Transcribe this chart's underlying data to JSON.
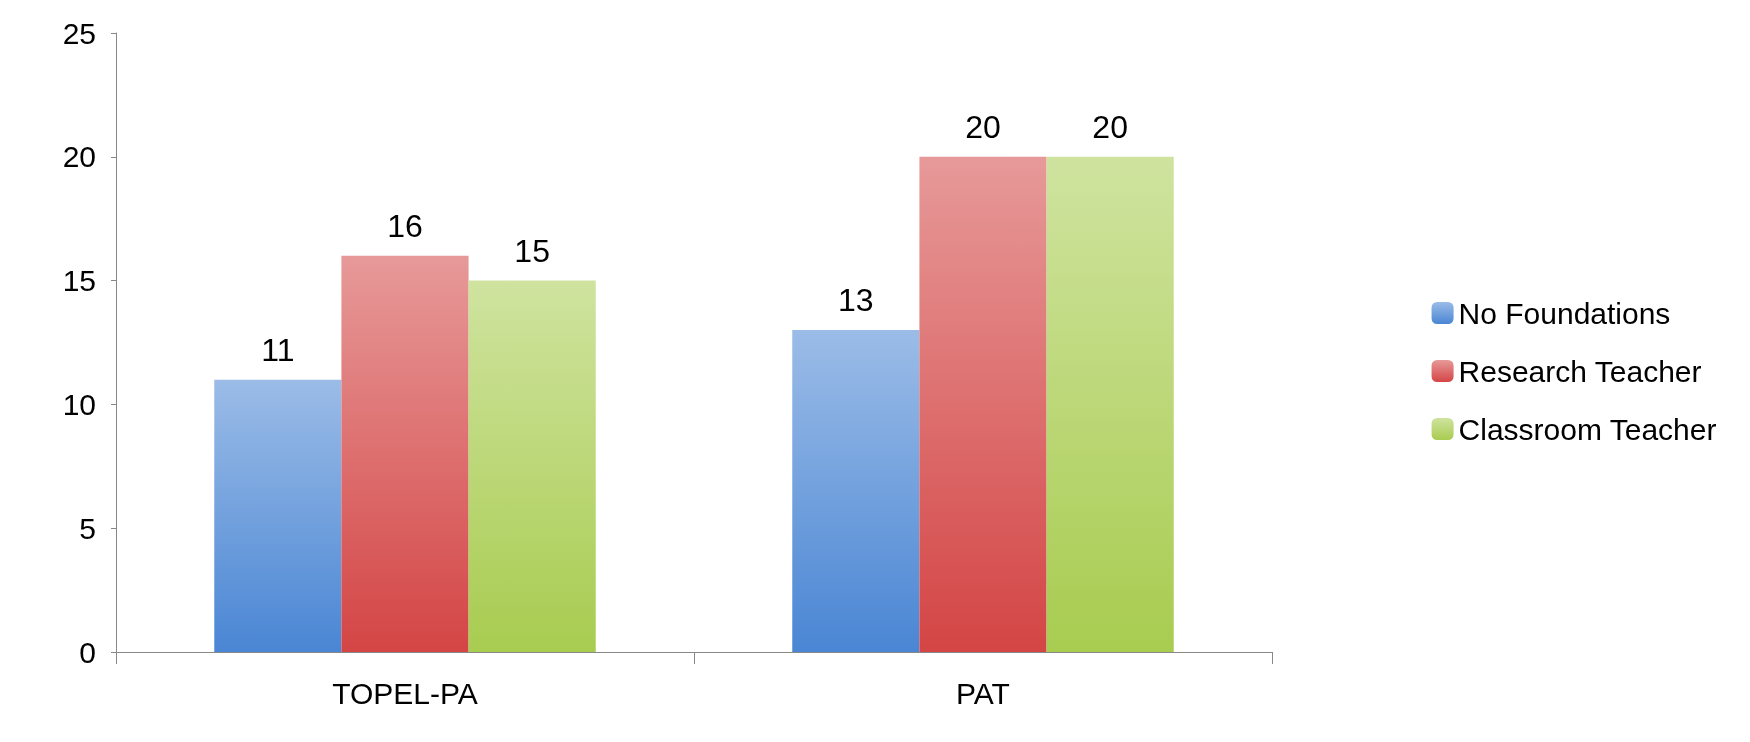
{
  "chart_data": {
    "type": "bar",
    "categories": [
      "TOPEL-PA",
      "PAT"
    ],
    "series": [
      {
        "name": "No Foundations",
        "color": "#4a86d4",
        "values": [
          11,
          13
        ]
      },
      {
        "name": "Research Teacher",
        "color": "#d44545",
        "values": [
          16,
          20
        ]
      },
      {
        "name": "Classroom Teacher",
        "color": "#a8cc50",
        "values": [
          15,
          20
        ]
      }
    ],
    "ylim": [
      0,
      25
    ],
    "yticks": [
      0,
      5,
      10,
      15,
      20,
      25
    ],
    "grid": false,
    "legend": "right",
    "data_labels": true
  }
}
